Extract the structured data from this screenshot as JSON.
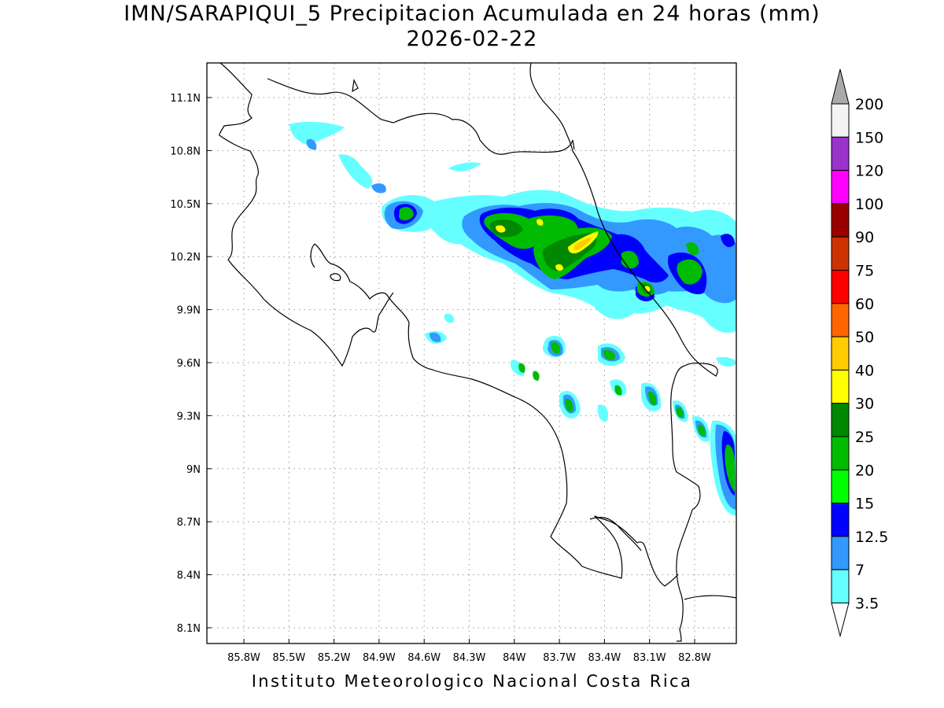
{
  "title_line1": "IMN/SARAPIQUI_5 Precipitacion Acumulada en 24 horas (mm)",
  "title_line2": "2026-02-22",
  "footer": "Instituto Meteorologico Nacional Costa Rica",
  "axes": {
    "lon_ticks": [
      "85.8W",
      "85.5W",
      "85.2W",
      "84.9W",
      "84.6W",
      "84.3W",
      "84W",
      "83.7W",
      "83.4W",
      "83.1W",
      "82.8W"
    ],
    "lat_ticks": [
      "11.1N",
      "10.8N",
      "10.5N",
      "10.2N",
      "9.9N",
      "9.6N",
      "9.3N",
      "9N",
      "8.7N",
      "8.4N",
      "8.1N"
    ]
  },
  "colorbar": {
    "labels": [
      "200",
      "150",
      "120",
      "100",
      "90",
      "75",
      "60",
      "50",
      "40",
      "30",
      "25",
      "20",
      "15",
      "12.5",
      "7",
      "3.5"
    ],
    "colors": [
      "#f4f4f4",
      "#9933cc",
      "#ff00ff",
      "#990000",
      "#cc3300",
      "#ff0000",
      "#ff6600",
      "#ffcc00",
      "#ffff00",
      "#008800",
      "#00bb00",
      "#00ff00",
      "#0000ff",
      "#3399ff",
      "#66ffff"
    ],
    "over_color": "#aaaaaa",
    "under_color": "#ffffff"
  }
}
